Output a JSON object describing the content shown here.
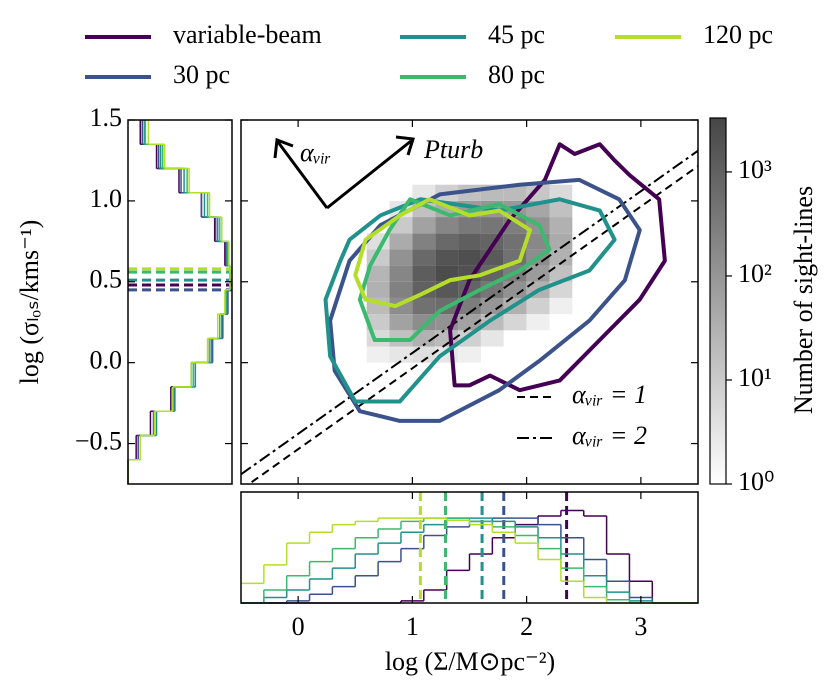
{
  "chart_data": {
    "type": "contour",
    "xlabel": "log (Σ/M⊙pc⁻²)",
    "ylabel": "log (σₗₒₛ/kms⁻¹)",
    "xlim": [
      -0.5,
      3.5
    ],
    "xticks": [
      0,
      1,
      2,
      3
    ],
    "ylim": [
      -0.75,
      1.5
    ],
    "yticks": [
      {
        "value": -0.5,
        "label": "−0.5"
      },
      {
        "value": 0,
        "label": "0.0"
      },
      0.5,
      {
        "value": 1,
        "label": "1.0"
      },
      1.5
    ],
    "legend": "top",
    "series": [
      {
        "name": "variable-beam",
        "color": "#440154",
        "contour_x": [
          1.37,
          1.33,
          1.5,
          1.85,
          2.16,
          2.29,
          2.42,
          2.64,
          2.77,
          2.9,
          3.16,
          3.21,
          2.99,
          2.64,
          2.29,
          1.94,
          1.68,
          1.5
        ],
        "contour_y": [
          -0.14,
          0.2,
          0.51,
          0.88,
          1.13,
          1.35,
          1.29,
          1.35,
          1.25,
          1.16,
          1.01,
          0.63,
          0.39,
          0.14,
          -0.11,
          -0.17,
          -0.08,
          -0.14
        ],
        "median_x": 2.35,
        "median_y": 0.48,
        "hist_x": [
          0,
          0,
          0,
          0,
          0,
          0,
          0,
          0.02,
          0.12,
          0.3,
          0.45,
          0.6,
          0.72,
          0.8,
          0.85,
          0.8,
          0.45,
          0.2,
          0,
          0
        ],
        "hist_y": [
          0,
          0.08,
          0.22,
          0.42,
          0.62,
          0.8,
          0.9,
          0.97,
          1.0,
          0.95,
          0.85,
          0.72,
          0.5,
          0.28,
          0.12
        ]
      },
      {
        "name": "30 pc",
        "color": "#3b528b",
        "contour_x": [
          0.54,
          0.32,
          0.28,
          0.45,
          0.72,
          1.24,
          1.94,
          2.46,
          2.81,
          2.99,
          2.86,
          2.55,
          2.11,
          1.76,
          1.24,
          0.89
        ],
        "contour_y": [
          -0.3,
          -0.05,
          0.26,
          0.63,
          0.85,
          1.04,
          1.1,
          1.13,
          1.01,
          0.82,
          0.51,
          0.26,
          0.01,
          -0.17,
          -0.36,
          -0.36
        ],
        "median_x": 1.8,
        "median_y": 0.45,
        "hist_x": [
          0,
          0,
          0.02,
          0.08,
          0.15,
          0.25,
          0.38,
          0.5,
          0.62,
          0.7,
          0.75,
          0.78,
          0.78,
          0.72,
          0.6,
          0.4,
          0.2,
          0.05,
          0,
          0
        ],
        "hist_y": [
          0,
          0.1,
          0.25,
          0.45,
          0.66,
          0.83,
          0.93,
          0.98,
          1.0,
          0.96,
          0.86,
          0.72,
          0.52,
          0.3,
          0.14
        ]
      },
      {
        "name": "45 pc",
        "color": "#21918c",
        "contour_x": [
          0.5,
          0.28,
          0.24,
          0.37,
          0.45,
          0.72,
          1.07,
          1.76,
          2.29,
          2.64,
          2.77,
          2.55,
          2.11,
          1.68,
          1.24,
          0.89
        ],
        "contour_y": [
          -0.24,
          0.04,
          0.39,
          0.63,
          0.76,
          0.91,
          1.01,
          0.94,
          1.01,
          0.94,
          0.76,
          0.57,
          0.45,
          0.26,
          0.04,
          -0.24
        ],
        "median_x": 1.61,
        "median_y": 0.51,
        "hist_x": [
          0,
          0.05,
          0.12,
          0.22,
          0.32,
          0.45,
          0.55,
          0.65,
          0.72,
          0.78,
          0.78,
          0.75,
          0.7,
          0.6,
          0.45,
          0.25,
          0.1,
          0.02,
          0,
          0
        ],
        "hist_y": [
          0,
          0.12,
          0.28,
          0.46,
          0.66,
          0.82,
          0.92,
          0.97,
          1.0,
          0.97,
          0.88,
          0.75,
          0.55,
          0.32,
          0.16
        ]
      },
      {
        "name": "80 pc",
        "color": "#3bba6f",
        "contour_x": [
          0.67,
          0.54,
          0.63,
          0.8,
          0.98,
          1.33,
          1.76,
          2.11,
          2.2,
          1.94,
          1.59,
          1.24,
          0.98
        ],
        "contour_y": [
          0.14,
          0.39,
          0.6,
          0.82,
          1.01,
          0.91,
          0.98,
          0.85,
          0.7,
          0.57,
          0.45,
          0.32,
          0.14
        ],
        "median_x": 1.29,
        "median_y": 0.56,
        "hist_x": [
          0,
          0.12,
          0.25,
          0.38,
          0.5,
          0.6,
          0.68,
          0.75,
          0.78,
          0.78,
          0.75,
          0.7,
          0.62,
          0.5,
          0.32,
          0.15,
          0.03,
          0,
          0,
          0
        ],
        "hist_y": [
          0,
          0.12,
          0.26,
          0.44,
          0.64,
          0.8,
          0.9,
          0.96,
          1.0,
          0.98,
          0.9,
          0.78,
          0.58,
          0.34,
          0.17
        ]
      },
      {
        "name": "120 pc",
        "color": "#b5de2b",
        "contour_x": [
          0.59,
          0.5,
          0.59,
          0.89,
          1.15,
          1.5,
          1.76,
          2.03,
          1.94,
          1.59,
          1.33,
          1.07,
          0.85
        ],
        "contour_y": [
          0.39,
          0.54,
          0.76,
          0.91,
          1.01,
          0.91,
          0.94,
          0.82,
          0.63,
          0.54,
          0.51,
          0.42,
          0.35
        ],
        "median_x": 1.07,
        "median_y": 0.58,
        "hist_x": [
          0.18,
          0.35,
          0.55,
          0.65,
          0.72,
          0.75,
          0.78,
          0.78,
          0.78,
          0.76,
          0.72,
          0.65,
          0.55,
          0.4,
          0.2,
          0.05,
          0,
          0,
          0,
          0
        ],
        "hist_y": [
          0,
          0.12,
          0.26,
          0.44,
          0.62,
          0.78,
          0.88,
          0.95,
          1.0,
          0.99,
          0.92,
          0.8,
          0.6,
          0.36,
          0.2
        ]
      }
    ],
    "bottom_bins": [
      -0.5,
      -0.3,
      -0.1,
      0.1,
      0.3,
      0.5,
      0.7,
      0.9,
      1.1,
      1.3,
      1.5,
      1.7,
      1.9,
      2.1,
      2.3,
      2.5,
      2.7,
      2.9,
      3.1,
      3.3,
      3.5
    ],
    "left_bins": [
      -0.75,
      -0.6,
      -0.45,
      -0.3,
      -0.15,
      0,
      0.15,
      0.3,
      0.45,
      0.6,
      0.75,
      0.9,
      1.05,
      1.2,
      1.35,
      1.5
    ],
    "hist_lim": [
      0,
      1.02
    ],
    "heatmap": {
      "x_edges": [
        0.6,
        0.8,
        1.0,
        1.2,
        1.4,
        1.6,
        1.8,
        2.0,
        2.2,
        2.4
      ],
      "y_edges": [
        0.0,
        0.1,
        0.2,
        0.3,
        0.4,
        0.5,
        0.6,
        0.7,
        0.8,
        0.9,
        1.0,
        1.1
      ],
      "counts": [
        [
          2,
          3,
          4,
          3,
          2,
          1,
          0,
          0,
          0
        ],
        [
          5,
          15,
          30,
          20,
          8,
          3,
          1,
          0,
          0
        ],
        [
          10,
          60,
          150,
          120,
          60,
          20,
          6,
          2,
          0
        ],
        [
          20,
          150,
          500,
          600,
          300,
          100,
          30,
          8,
          2
        ],
        [
          30,
          250,
          1000,
          1500,
          900,
          400,
          120,
          30,
          6
        ],
        [
          25,
          200,
          1200,
          2500,
          2000,
          900,
          300,
          80,
          15
        ],
        [
          10,
          120,
          700,
          1800,
          2200,
          1400,
          500,
          150,
          30
        ],
        [
          4,
          40,
          250,
          700,
          1100,
          900,
          500,
          180,
          40
        ],
        [
          1,
          10,
          60,
          200,
          350,
          400,
          300,
          120,
          30
        ],
        [
          0,
          3,
          15,
          40,
          80,
          100,
          90,
          50,
          15
        ],
        [
          0,
          1,
          3,
          8,
          15,
          20,
          20,
          12,
          5
        ]
      ]
    },
    "colorbar": {
      "label": "Number of sight-lines",
      "log": true,
      "lim": [
        1,
        3300
      ],
      "ticks": [
        {
          "value": 1,
          "label": "10⁰"
        },
        {
          "value": 10,
          "label": "10¹"
        },
        {
          "value": 100,
          "label": "10²"
        },
        {
          "value": 1000,
          "label": "10³"
        }
      ]
    },
    "reference_lines": [
      {
        "name": "αᵥᵢᵣ = 1",
        "style": "dashed",
        "x": [
          -0.5,
          3.5
        ],
        "y": [
          -0.785,
          1.215
        ]
      },
      {
        "name": "αᵥᵢᵣ = 2",
        "style": "dashdot",
        "x": [
          -0.5,
          3.5
        ],
        "y": [
          -0.69,
          1.31
        ]
      }
    ],
    "annotations": [
      "αᵥᵢᵣ",
      "Pturb"
    ]
  }
}
